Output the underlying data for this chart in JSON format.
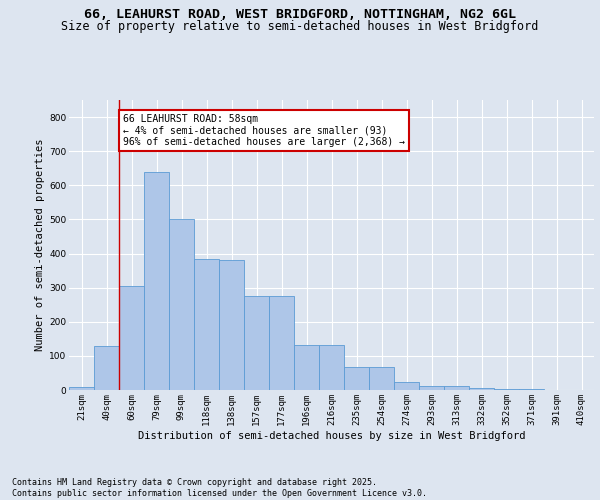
{
  "title_line1": "66, LEAHURST ROAD, WEST BRIDGFORD, NOTTINGHAM, NG2 6GL",
  "title_line2": "Size of property relative to semi-detached houses in West Bridgford",
  "xlabel": "Distribution of semi-detached houses by size in West Bridgford",
  "ylabel": "Number of semi-detached properties",
  "categories": [
    "21sqm",
    "40sqm",
    "60sqm",
    "79sqm",
    "99sqm",
    "118sqm",
    "138sqm",
    "157sqm",
    "177sqm",
    "196sqm",
    "216sqm",
    "235sqm",
    "254sqm",
    "274sqm",
    "293sqm",
    "313sqm",
    "332sqm",
    "352sqm",
    "371sqm",
    "391sqm",
    "410sqm"
  ],
  "bar_heights": [
    8,
    130,
    305,
    638,
    500,
    383,
    380,
    275,
    275,
    133,
    133,
    68,
    68,
    22,
    11,
    11,
    5,
    3,
    2,
    1,
    0
  ],
  "bar_color": "#aec6e8",
  "bar_edge_color": "#5b9bd5",
  "annotation_text_line1": "66 LEAHURST ROAD: 58sqm",
  "annotation_text_line2": "← 4% of semi-detached houses are smaller (93)",
  "annotation_text_line3": "96% of semi-detached houses are larger (2,368) →",
  "vline_x": 1.5,
  "vline_color": "#cc0000",
  "annotation_box_color": "#cc0000",
  "ylim": [
    0,
    850
  ],
  "yticks": [
    0,
    100,
    200,
    300,
    400,
    500,
    600,
    700,
    800
  ],
  "footnote_line1": "Contains HM Land Registry data © Crown copyright and database right 2025.",
  "footnote_line2": "Contains public sector information licensed under the Open Government Licence v3.0.",
  "bg_color": "#dde5f0",
  "plot_bg_color": "#dde5f0",
  "grid_color": "#ffffff",
  "title_fontsize": 9.5,
  "subtitle_fontsize": 8.5,
  "axis_label_fontsize": 7.5,
  "tick_fontsize": 6.5,
  "annotation_fontsize": 7,
  "footnote_fontsize": 6
}
